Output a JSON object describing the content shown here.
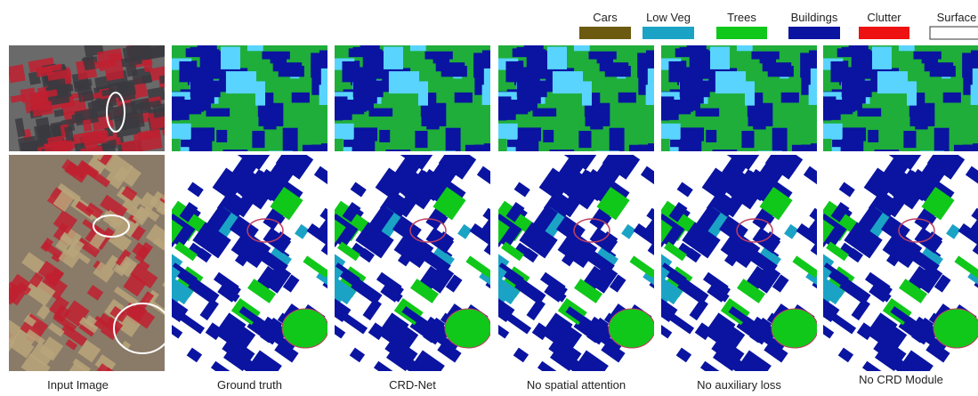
{
  "legend": [
    "Cars",
    "Low Veg",
    "Trees",
    "Buildings",
    "Clutter",
    "Surface"
  ],
  "captions": [
    "Input Image",
    "Ground truth",
    "CRD-Net",
    "No spatial attention",
    "No auxiliary loss",
    "No CRD Module"
  ]
}
